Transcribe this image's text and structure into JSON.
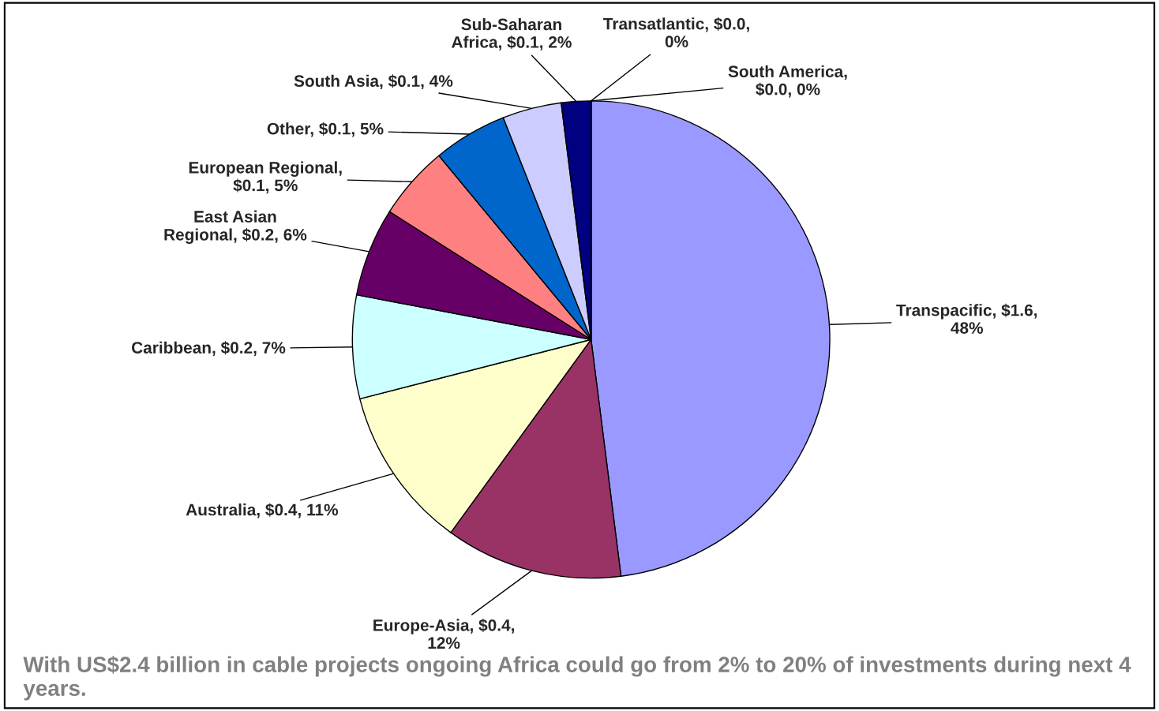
{
  "chart_data": {
    "type": "pie",
    "categories": [
      "Transpacific, $1.6,\n48%",
      "Europe-Asia, $0.4,\n12%",
      "Australia, $0.4, 11%",
      "Caribbean, $0.2, 7%",
      "East Asian\nRegional, $0.2, 6%",
      "European Regional,\n$0.1, 5%",
      "Other, $0.1, 5%",
      "South Asia, $0.1, 4%",
      "Sub-Saharan\nAfrica, $0.1, 2%",
      "Transatlantic, $0.0,\n0%",
      "South America,\n$0.0, 0%"
    ],
    "values": [
      48,
      12,
      11,
      7,
      6,
      5,
      5,
      4,
      2,
      0,
      0
    ],
    "colors": [
      "#9999ff",
      "#993366",
      "#ffffcc",
      "#ccffff",
      "#660066",
      "#ff8080",
      "#0066cc",
      "#ccccff",
      "#000080",
      "#ffffff",
      "#ffffff"
    ],
    "annotations": [
      "With US$2.4 billion in cable projects ongoing Africa could go from 2% to 20% of investments during next 4 years."
    ]
  }
}
